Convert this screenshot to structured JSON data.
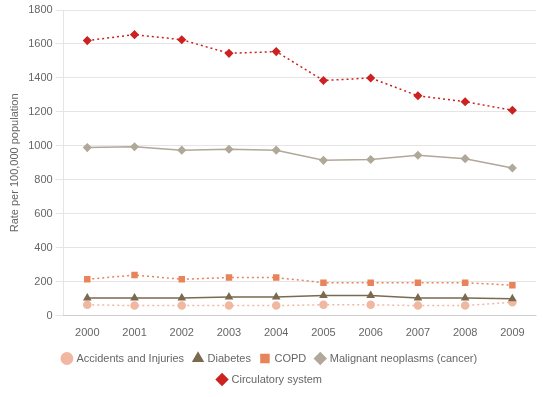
{
  "chart_data": {
    "type": "line",
    "x": [
      2000,
      2001,
      2002,
      2003,
      2004,
      2005,
      2006,
      2007,
      2008,
      2009
    ],
    "xlim": [
      1999.5,
      2009.5
    ],
    "xticks": [
      2000,
      2001,
      2002,
      2003,
      2004,
      2005,
      2006,
      2007,
      2008,
      2009
    ],
    "ylim": [
      0,
      1800
    ],
    "yticks": [
      0,
      200,
      400,
      600,
      800,
      1000,
      1200,
      1400,
      1600,
      1800
    ],
    "ylabel": "Rate per 100,000 population",
    "grid": "y",
    "legend": "bottom",
    "series": [
      {
        "name": "Accidents and Injuries",
        "color": "#f0b8a0",
        "marker": "circle",
        "line_style": "dotted",
        "values": [
          65,
          60,
          60,
          60,
          60,
          65,
          65,
          60,
          60,
          80
        ]
      },
      {
        "name": "Diabetes",
        "color": "#7a6a50",
        "marker": "triangle",
        "line_style": "solid",
        "values": [
          105,
          105,
          105,
          110,
          110,
          120,
          120,
          105,
          105,
          100
        ]
      },
      {
        "name": "COPD",
        "color": "#e8835a",
        "marker": "square",
        "line_style": "dotted",
        "values": [
          215,
          240,
          215,
          225,
          225,
          195,
          195,
          195,
          195,
          180
        ]
      },
      {
        "name": "Malignant neoplasms (cancer)",
        "color": "#b0a898",
        "marker": "diamond",
        "line_style": "solid",
        "values": [
          990,
          995,
          975,
          980,
          975,
          915,
          920,
          945,
          925,
          870
        ]
      },
      {
        "name": "Circulatory system",
        "color": "#cc2222",
        "marker": "diamond",
        "line_style": "dotted",
        "values": [
          1620,
          1655,
          1625,
          1545,
          1555,
          1385,
          1400,
          1295,
          1260,
          1210
        ]
      }
    ]
  }
}
